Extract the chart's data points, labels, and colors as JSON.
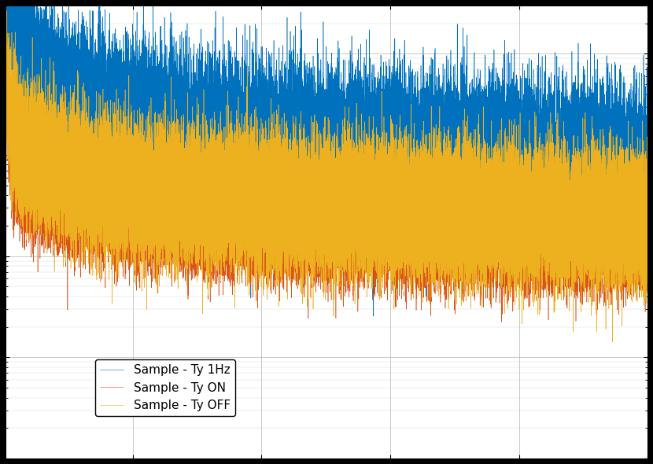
{
  "title": "",
  "xlabel": "",
  "ylabel": "",
  "legend_entries": [
    "Sample - Ty 1Hz",
    "Sample - Ty ON",
    "Sample - Ty OFF"
  ],
  "colors": [
    "#0072BD",
    "#D95319",
    "#EDB120"
  ],
  "background_color": "#FFFFFF",
  "grid_color": "#B0B0B0",
  "xlim": [
    1,
    500
  ],
  "ylim": [
    1e-09,
    3e-05
  ],
  "seed": 0,
  "n_points": 50000
}
